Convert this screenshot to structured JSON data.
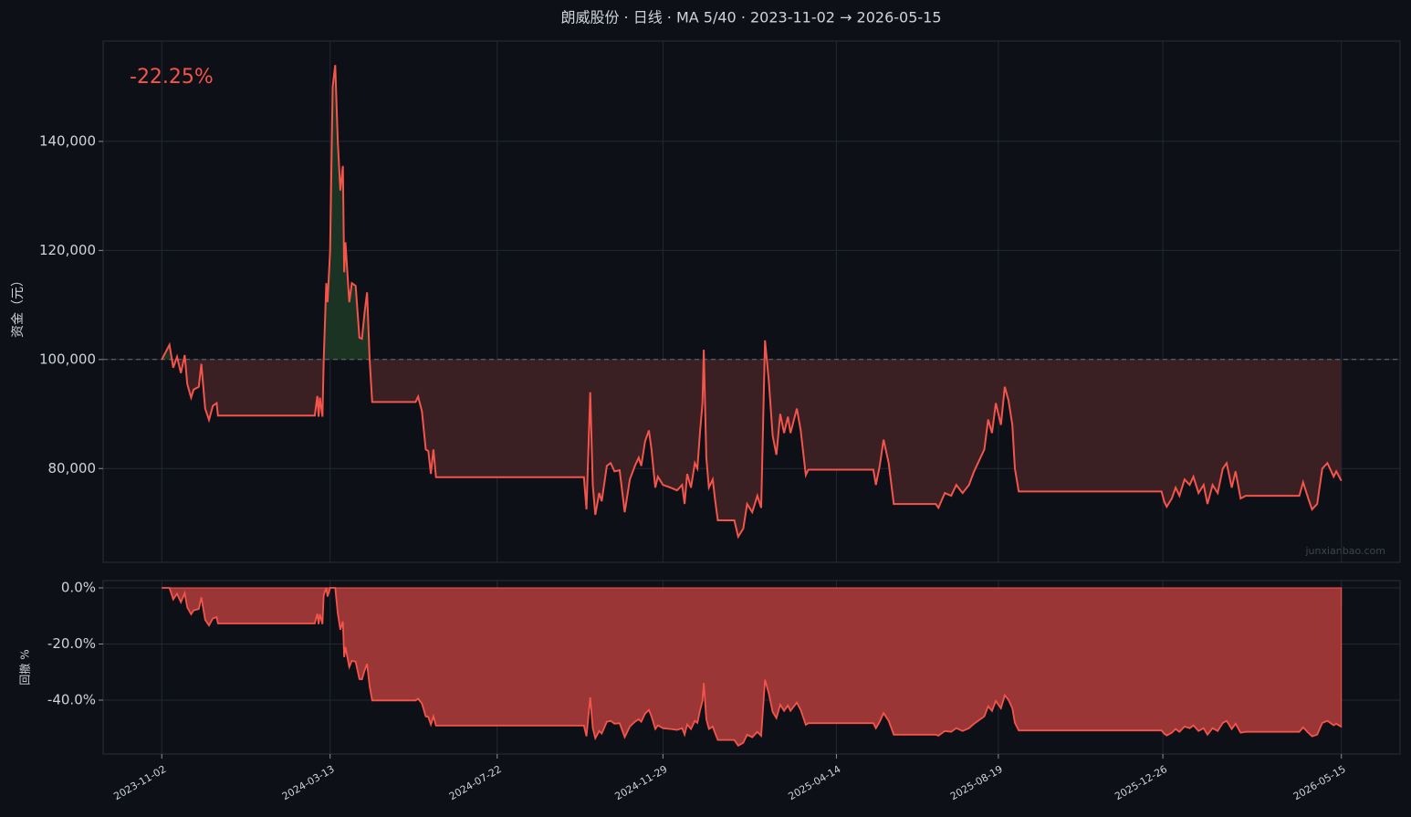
{
  "chart_data": [
    {
      "type": "line",
      "title": "朗威股份 · 日线 · MA 5/40 · 2023-11-02 → 2026-05-15",
      "ylabel": "资金（元）",
      "annotation": "-22.25%",
      "watermark": "junxianbao.com",
      "x": [
        "2023-11-02",
        "2023-11-08",
        "2023-11-11",
        "2023-11-14",
        "2023-11-17",
        "2023-11-20",
        "2023-11-22",
        "2023-11-25",
        "2023-11-27",
        "2023-12-01",
        "2023-12-03",
        "2023-12-06",
        "2023-12-09",
        "2023-12-12",
        "2023-12-15",
        "2023-12-16",
        "2024-03-01",
        "2024-03-03",
        "2024-03-04",
        "2024-03-05",
        "2024-03-07",
        "2024-03-08",
        "2024-03-10",
        "2024-03-11",
        "2024-03-13",
        "2024-03-15",
        "2024-03-17",
        "2024-03-19",
        "2024-03-21",
        "2024-03-23",
        "2024-03-24",
        "2024-03-25",
        "2024-03-28",
        "2024-03-30",
        "2024-04-02",
        "2024-04-05",
        "2024-04-07",
        "2024-04-09",
        "2024-04-11",
        "2024-04-13",
        "2024-04-15",
        "2024-05-19",
        "2024-05-21",
        "2024-05-24",
        "2024-05-27",
        "2024-05-29",
        "2024-05-31",
        "2024-06-02",
        "2024-06-04",
        "2024-09-28",
        "2024-09-30",
        "2024-10-03",
        "2024-10-05",
        "2024-10-07",
        "2024-10-10",
        "2024-10-12",
        "2024-10-16",
        "2024-10-19",
        "2024-10-22",
        "2024-10-26",
        "2024-10-30",
        "2024-11-03",
        "2024-11-07",
        "2024-11-10",
        "2024-11-12",
        "2024-11-15",
        "2024-11-18",
        "2024-11-20",
        "2024-11-23",
        "2024-11-25",
        "2024-11-29",
        "2024-12-05",
        "2024-12-10",
        "2024-12-14",
        "2024-12-16",
        "2024-12-18",
        "2024-12-21",
        "2024-12-24",
        "2024-12-26",
        "2024-12-28",
        "2024-12-30",
        "2024-12-31",
        "2025-01-02",
        "2025-01-04",
        "2025-01-07",
        "2025-01-09",
        "2025-01-11",
        "2025-01-24",
        "2025-01-27",
        "2025-01-31",
        "2025-02-03",
        "2025-02-07",
        "2025-02-11",
        "2025-02-14",
        "2025-02-17",
        "2025-02-20",
        "2025-02-23",
        "2025-02-26",
        "2025-03-01",
        "2025-03-04",
        "2025-03-07",
        "2025-03-09",
        "2025-03-14",
        "2025-03-17",
        "2025-03-21",
        "2025-03-23",
        "2025-05-13",
        "2025-05-15",
        "2025-05-18",
        "2025-05-21",
        "2025-05-25",
        "2025-05-29",
        "2025-07-01",
        "2025-07-03",
        "2025-07-08",
        "2025-07-13",
        "2025-07-17",
        "2025-07-22",
        "2025-07-27",
        "2025-07-31",
        "2025-08-04",
        "2025-08-08",
        "2025-08-11",
        "2025-08-14",
        "2025-08-17",
        "2025-08-21",
        "2025-08-24",
        "2025-08-27",
        "2025-08-30",
        "2025-09-01",
        "2025-09-04",
        "2025-12-25",
        "2025-12-27",
        "2025-12-29",
        "2026-01-02",
        "2026-01-05",
        "2026-01-08",
        "2026-01-12",
        "2026-01-16",
        "2026-01-19",
        "2026-01-23",
        "2026-01-27",
        "2026-01-30",
        "2026-02-03",
        "2026-02-07",
        "2026-02-11",
        "2026-02-14",
        "2026-02-18",
        "2026-02-21",
        "2026-02-25",
        "2026-03-01",
        "2026-04-12",
        "2026-04-15",
        "2026-04-19",
        "2026-04-22",
        "2026-04-26",
        "2026-04-30",
        "2026-05-04",
        "2026-05-09",
        "2026-05-11",
        "2026-05-15"
      ],
      "values": [
        100000,
        102700,
        98500,
        100500,
        97500,
        100800,
        95500,
        93000,
        94500,
        95000,
        99200,
        91000,
        88900,
        91500,
        92000,
        89700,
        89700,
        93300,
        89500,
        93000,
        89500,
        100000,
        114000,
        110500,
        120000,
        150000,
        154000,
        140000,
        131000,
        135500,
        116000,
        121500,
        110500,
        114000,
        113500,
        104000,
        103800,
        108500,
        112300,
        100000,
        92200,
        92200,
        93200,
        90500,
        83500,
        83200,
        79000,
        83500,
        78400,
        78400,
        72500,
        94000,
        77000,
        71500,
        75500,
        74000,
        80500,
        81000,
        79500,
        79700,
        72000,
        78000,
        80500,
        82000,
        80500,
        85000,
        87000,
        83500,
        76500,
        78500,
        77000,
        76500,
        76000,
        77000,
        73500,
        79000,
        76500,
        81000,
        80000,
        86500,
        92000,
        101800,
        82000,
        76500,
        78000,
        74000,
        70500,
        70500,
        67500,
        69000,
        73500,
        72000,
        75000,
        72800,
        103500,
        96000,
        86000,
        82500,
        90000,
        86500,
        89500,
        86500,
        91000,
        87000,
        78800,
        79800,
        79800,
        77000,
        80500,
        85300,
        81000,
        73500,
        73500,
        72800,
        75500,
        75000,
        77000,
        75500,
        77000,
        79500,
        81500,
        83500,
        89000,
        86500,
        92000,
        88000,
        95000,
        92500,
        88000,
        80000,
        75800,
        75800,
        74000,
        73000,
        74500,
        76500,
        75000,
        78000,
        77000,
        78500,
        75500,
        77000,
        73500,
        77000,
        75500,
        80000,
        81000,
        76500,
        79500,
        74500,
        75000,
        75000,
        77500,
        74500,
        72500,
        73500,
        80000,
        81000,
        78500,
        79500,
        77750
      ],
      "color": "#f5544a",
      "fill_above": "#1b3323",
      "fill_below": "#3a1f23",
      "baseline": 100000,
      "xlim": [
        "2023-09-17",
        "2026-06-30"
      ],
      "ylim": [
        62800,
        158400
      ],
      "yticks": [
        {
          "value": 80000,
          "label": "80,000"
        },
        {
          "value": 100000,
          "label": "100,000"
        },
        {
          "value": 120000,
          "label": "120,000"
        },
        {
          "value": 140000,
          "label": "140,000"
        }
      ],
      "xticks": [
        "2023-11-02",
        "2024-03-13",
        "2024-07-22",
        "2024-11-29",
        "2025-04-14",
        "2025-08-19",
        "2025-12-26",
        "2026-05-15"
      ],
      "grid": true
    },
    {
      "type": "area",
      "ylabel": "回撤 %",
      "x": [
        "2023-11-02",
        "2023-11-08",
        "2023-11-11",
        "2023-11-14",
        "2023-11-17",
        "2023-11-20",
        "2023-11-22",
        "2023-11-25",
        "2023-11-27",
        "2023-12-01",
        "2023-12-03",
        "2023-12-06",
        "2023-12-09",
        "2023-12-12",
        "2023-12-15",
        "2023-12-16",
        "2024-03-01",
        "2024-03-03",
        "2024-03-04",
        "2024-03-05",
        "2024-03-07",
        "2024-03-08",
        "2024-03-10",
        "2024-03-11",
        "2024-03-13",
        "2024-03-15",
        "2024-03-17",
        "2024-03-19",
        "2024-03-21",
        "2024-03-23",
        "2024-03-24",
        "2024-03-25",
        "2024-03-28",
        "2024-03-30",
        "2024-04-02",
        "2024-04-05",
        "2024-04-07",
        "2024-04-09",
        "2024-04-11",
        "2024-04-13",
        "2024-04-15",
        "2024-05-19",
        "2024-05-21",
        "2024-05-24",
        "2024-05-27",
        "2024-05-29",
        "2024-05-31",
        "2024-06-02",
        "2024-06-04",
        "2024-09-28",
        "2024-09-30",
        "2024-10-03",
        "2024-10-05",
        "2024-10-07",
        "2024-10-10",
        "2024-10-12",
        "2024-10-16",
        "2024-10-19",
        "2024-10-22",
        "2024-10-26",
        "2024-10-30",
        "2024-11-03",
        "2024-11-07",
        "2024-11-10",
        "2024-11-12",
        "2024-11-15",
        "2024-11-18",
        "2024-11-20",
        "2024-11-23",
        "2024-11-25",
        "2024-11-29",
        "2024-12-05",
        "2024-12-10",
        "2024-12-14",
        "2024-12-16",
        "2024-12-18",
        "2024-12-21",
        "2024-12-24",
        "2024-12-26",
        "2024-12-28",
        "2024-12-30",
        "2024-12-31",
        "2025-01-02",
        "2025-01-04",
        "2025-01-07",
        "2025-01-09",
        "2025-01-11",
        "2025-01-24",
        "2025-01-27",
        "2025-01-31",
        "2025-02-03",
        "2025-02-07",
        "2025-02-11",
        "2025-02-14",
        "2025-02-17",
        "2025-02-20",
        "2025-02-23",
        "2025-02-26",
        "2025-03-01",
        "2025-03-04",
        "2025-03-07",
        "2025-03-09",
        "2025-03-14",
        "2025-03-17",
        "2025-03-21",
        "2025-03-23",
        "2025-05-13",
        "2025-05-15",
        "2025-05-18",
        "2025-05-21",
        "2025-05-25",
        "2025-05-29",
        "2025-07-01",
        "2025-07-03",
        "2025-07-08",
        "2025-07-13",
        "2025-07-17",
        "2025-07-22",
        "2025-07-27",
        "2025-07-31",
        "2025-08-04",
        "2025-08-08",
        "2025-08-11",
        "2025-08-14",
        "2025-08-17",
        "2025-08-21",
        "2025-08-24",
        "2025-08-27",
        "2025-08-30",
        "2025-09-01",
        "2025-09-04",
        "2025-12-25",
        "2025-12-27",
        "2025-12-29",
        "2026-01-02",
        "2026-01-05",
        "2026-01-08",
        "2026-01-12",
        "2026-01-16",
        "2026-01-19",
        "2026-01-23",
        "2026-01-27",
        "2026-01-30",
        "2026-02-03",
        "2026-02-07",
        "2026-02-11",
        "2026-02-14",
        "2026-02-18",
        "2026-02-21",
        "2026-02-25",
        "2026-03-01",
        "2026-04-12",
        "2026-04-15",
        "2026-04-19",
        "2026-04-22",
        "2026-04-26",
        "2026-04-30",
        "2026-05-04",
        "2026-05-09",
        "2026-05-11",
        "2026-05-15"
      ],
      "values": [
        0,
        0,
        -4.1,
        -2.1,
        -5.1,
        -1.9,
        -7.0,
        -9.4,
        -8.0,
        -7.5,
        -3.4,
        -11.4,
        -13.4,
        -10.9,
        -10.4,
        -12.7,
        -12.7,
        -9.2,
        -12.9,
        -9.4,
        -12.9,
        -2.6,
        0,
        -3.1,
        0,
        0,
        0,
        -9.1,
        -14.9,
        -12.0,
        -24.7,
        -21.1,
        -28.2,
        -26.0,
        -26.3,
        -32.5,
        -32.6,
        -29.5,
        -27.1,
        -35.1,
        -40.1,
        -40.1,
        -39.5,
        -41.2,
        -45.8,
        -46.0,
        -48.7,
        -45.8,
        -49.1,
        -49.1,
        -52.9,
        -39.0,
        -50.0,
        -53.6,
        -51.0,
        -51.9,
        -47.7,
        -47.4,
        -48.4,
        -48.2,
        -53.2,
        -49.4,
        -47.7,
        -46.8,
        -47.7,
        -44.8,
        -43.5,
        -45.8,
        -50.3,
        -49.0,
        -50.0,
        -50.3,
        -50.6,
        -50.0,
        -52.3,
        -48.7,
        -50.3,
        -47.4,
        -48.1,
        -43.8,
        -40.3,
        -33.9,
        -46.8,
        -50.3,
        -49.4,
        -51.9,
        -54.2,
        -54.2,
        -56.2,
        -55.2,
        -52.3,
        -53.2,
        -51.3,
        -52.7,
        -32.8,
        -37.7,
        -44.2,
        -46.4,
        -41.6,
        -43.8,
        -41.9,
        -43.8,
        -40.9,
        -43.5,
        -48.8,
        -48.2,
        -48.2,
        -50.0,
        -47.7,
        -44.6,
        -47.4,
        -52.3,
        -52.3,
        -52.7,
        -51.0,
        -51.3,
        -50.0,
        -51.0,
        -50.0,
        -48.4,
        -47.1,
        -45.8,
        -42.2,
        -43.8,
        -40.3,
        -42.9,
        -38.3,
        -39.9,
        -42.9,
        -48.1,
        -50.8,
        -50.8,
        -51.9,
        -52.6,
        -51.6,
        -50.3,
        -51.3,
        -49.4,
        -50.0,
        -49.0,
        -51.0,
        -50.0,
        -52.3,
        -50.0,
        -51.0,
        -48.1,
        -47.4,
        -50.3,
        -48.4,
        -51.6,
        -51.3,
        -51.3,
        -49.7,
        -51.6,
        -52.9,
        -52.3,
        -48.1,
        -47.4,
        -49.0,
        -48.4,
        -49.5
      ],
      "color": "#f5544a",
      "fill": "#9a3636",
      "xlim": [
        "2023-09-17",
        "2026-06-30"
      ],
      "ylim": [
        -59.2,
        2.6
      ],
      "yticks": [
        {
          "value": -40,
          "label": "-40.0%"
        },
        {
          "value": -20,
          "label": "-20.0%"
        },
        {
          "value": 0,
          "label": "0.0%"
        }
      ],
      "xticks": [
        "2023-11-02",
        "2024-03-13",
        "2024-07-22",
        "2024-11-29",
        "2025-04-14",
        "2025-08-19",
        "2025-12-26",
        "2026-05-15"
      ],
      "grid": true
    }
  ]
}
